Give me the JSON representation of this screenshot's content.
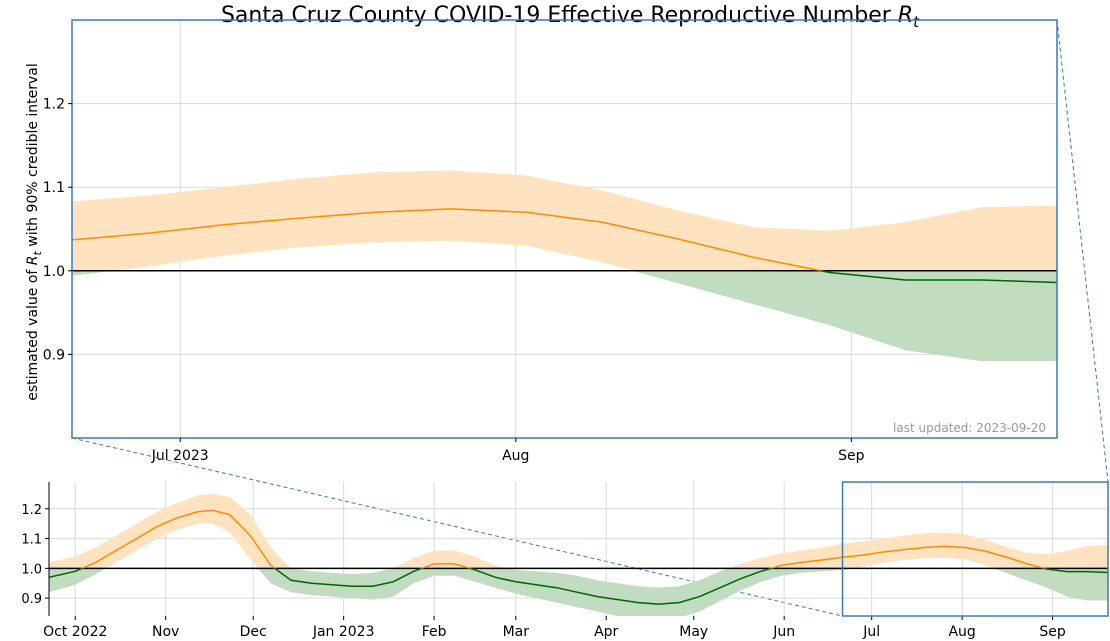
{
  "chart_data": [
    {
      "type": "line",
      "panel": "zoom",
      "title": "Santa Cruz County COVID-19 Effective Reproductive Number",
      "title_symbol": "R",
      "title_symbol_sub": "t",
      "ylabel_pre": "estimated value of ",
      "ylabel_symbol": "R",
      "ylabel_symbol_sub": "t",
      "ylabel_post": " with 90% credible interval",
      "xlim": [
        "2023-06-21",
        "2023-09-20"
      ],
      "ylim": [
        0.8,
        1.3
      ],
      "xticks": [
        {
          "date": "2023-07-01",
          "label": "Jul 2023"
        },
        {
          "date": "2023-08-01",
          "label": "Aug"
        },
        {
          "date": "2023-09-01",
          "label": "Sep"
        }
      ],
      "yticks": [
        "0.9",
        "1.0",
        "1.1",
        "1.2"
      ],
      "ytick_values": [
        0.9,
        1.0,
        1.1,
        1.2
      ],
      "reference_line": 1.0,
      "annotation": "last updated: 2023-09-20",
      "grid": true,
      "colors": {
        "above": "#ff8c00",
        "above_band": "#ffe2bf",
        "below": "#006400",
        "below_band": "#c2dcc2",
        "frame": "#3a7ab5"
      },
      "series": [
        {
          "x": [
            "2023-06-21",
            "2023-06-28",
            "2023-07-05",
            "2023-07-12",
            "2023-07-19",
            "2023-07-26",
            "2023-08-02",
            "2023-08-09",
            "2023-08-16",
            "2023-08-23",
            "2023-08-30",
            "2023-09-06",
            "2023-09-13",
            "2023-09-20"
          ],
          "median": [
            1.037,
            1.045,
            1.055,
            1.063,
            1.07,
            1.074,
            1.07,
            1.058,
            1.038,
            1.016,
            0.998,
            0.989,
            0.989,
            0.986
          ],
          "lower": [
            0.994,
            1.005,
            1.018,
            1.028,
            1.034,
            1.036,
            1.03,
            1.01,
            0.985,
            0.96,
            0.935,
            0.905,
            0.892,
            0.892
          ],
          "upper": [
            1.083,
            1.09,
            1.1,
            1.11,
            1.118,
            1.12,
            1.114,
            1.096,
            1.072,
            1.052,
            1.048,
            1.058,
            1.076,
            1.078
          ]
        }
      ]
    },
    {
      "type": "line",
      "panel": "overview",
      "xlim": [
        "2022-09-22",
        "2023-09-20"
      ],
      "ylim": [
        0.84,
        1.29
      ],
      "xticks": [
        {
          "date": "2022-10-01",
          "label": "Oct 2022"
        },
        {
          "date": "2022-11-01",
          "label": "Nov"
        },
        {
          "date": "2022-12-01",
          "label": "Dec"
        },
        {
          "date": "2023-01-01",
          "label": "Jan 2023"
        },
        {
          "date": "2023-02-01",
          "label": "Feb"
        },
        {
          "date": "2023-03-01",
          "label": "Mar"
        },
        {
          "date": "2023-04-01",
          "label": "Apr"
        },
        {
          "date": "2023-05-01",
          "label": "May"
        },
        {
          "date": "2023-06-01",
          "label": "Jun"
        },
        {
          "date": "2023-07-01",
          "label": "Jul"
        },
        {
          "date": "2023-08-01",
          "label": "Aug"
        },
        {
          "date": "2023-09-01",
          "label": "Sep"
        }
      ],
      "yticks": [
        "0.9",
        "1.0",
        "1.1",
        "1.2"
      ],
      "ytick_values": [
        0.9,
        1.0,
        1.1,
        1.2
      ],
      "reference_line": 1.0,
      "zoom_window": [
        "2023-06-21",
        "2023-09-20"
      ],
      "grid": true,
      "series": [
        {
          "x": [
            "2022-09-22",
            "2022-10-01",
            "2022-10-08",
            "2022-10-15",
            "2022-10-22",
            "2022-10-29",
            "2022-11-05",
            "2022-11-12",
            "2022-11-17",
            "2022-11-23",
            "2022-11-30",
            "2022-12-07",
            "2022-12-14",
            "2022-12-21",
            "2022-12-28",
            "2023-01-04",
            "2023-01-11",
            "2023-01-18",
            "2023-01-25",
            "2023-02-01",
            "2023-02-08",
            "2023-02-15",
            "2023-02-22",
            "2023-03-01",
            "2023-03-08",
            "2023-03-15",
            "2023-03-22",
            "2023-03-29",
            "2023-04-05",
            "2023-04-12",
            "2023-04-19",
            "2023-04-26",
            "2023-05-03",
            "2023-05-10",
            "2023-05-17",
            "2023-05-24",
            "2023-05-31",
            "2023-06-07",
            "2023-06-14",
            "2023-06-21",
            "2023-06-28",
            "2023-07-05",
            "2023-07-12",
            "2023-07-19",
            "2023-07-26",
            "2023-08-02",
            "2023-08-09",
            "2023-08-16",
            "2023-08-23",
            "2023-08-30",
            "2023-09-06",
            "2023-09-13",
            "2023-09-20"
          ],
          "median": [
            0.97,
            0.99,
            1.02,
            1.06,
            1.1,
            1.14,
            1.17,
            1.19,
            1.195,
            1.18,
            1.11,
            1.01,
            0.96,
            0.95,
            0.945,
            0.94,
            0.94,
            0.955,
            0.99,
            1.015,
            1.015,
            0.995,
            0.97,
            0.955,
            0.945,
            0.935,
            0.92,
            0.905,
            0.895,
            0.885,
            0.88,
            0.885,
            0.905,
            0.935,
            0.965,
            0.99,
            1.01,
            1.02,
            1.028,
            1.037,
            1.045,
            1.055,
            1.063,
            1.07,
            1.074,
            1.07,
            1.058,
            1.038,
            1.016,
            0.998,
            0.989,
            0.989,
            0.986
          ],
          "lower": [
            0.92,
            0.945,
            0.98,
            1.02,
            1.06,
            1.1,
            1.13,
            1.15,
            1.15,
            1.12,
            1.03,
            0.95,
            0.92,
            0.91,
            0.905,
            0.9,
            0.895,
            0.905,
            0.95,
            0.975,
            0.975,
            0.955,
            0.935,
            0.915,
            0.9,
            0.885,
            0.87,
            0.855,
            0.84,
            0.832,
            0.828,
            0.834,
            0.855,
            0.89,
            0.925,
            0.955,
            0.975,
            0.985,
            0.99,
            0.994,
            1.005,
            1.018,
            1.028,
            1.034,
            1.036,
            1.03,
            1.01,
            0.985,
            0.96,
            0.935,
            0.905,
            0.892,
            0.892
          ],
          "upper": [
            1.02,
            1.04,
            1.07,
            1.11,
            1.15,
            1.19,
            1.22,
            1.245,
            1.25,
            1.24,
            1.18,
            1.07,
            1.0,
            0.99,
            0.985,
            0.98,
            0.985,
            1.0,
            1.035,
            1.06,
            1.06,
            1.04,
            1.01,
            0.995,
            0.99,
            0.985,
            0.975,
            0.96,
            0.95,
            0.94,
            0.935,
            0.94,
            0.96,
            0.99,
            1.015,
            1.035,
            1.05,
            1.06,
            1.07,
            1.083,
            1.09,
            1.1,
            1.11,
            1.118,
            1.12,
            1.114,
            1.096,
            1.072,
            1.052,
            1.048,
            1.058,
            1.076,
            1.078
          ]
        }
      ]
    }
  ]
}
